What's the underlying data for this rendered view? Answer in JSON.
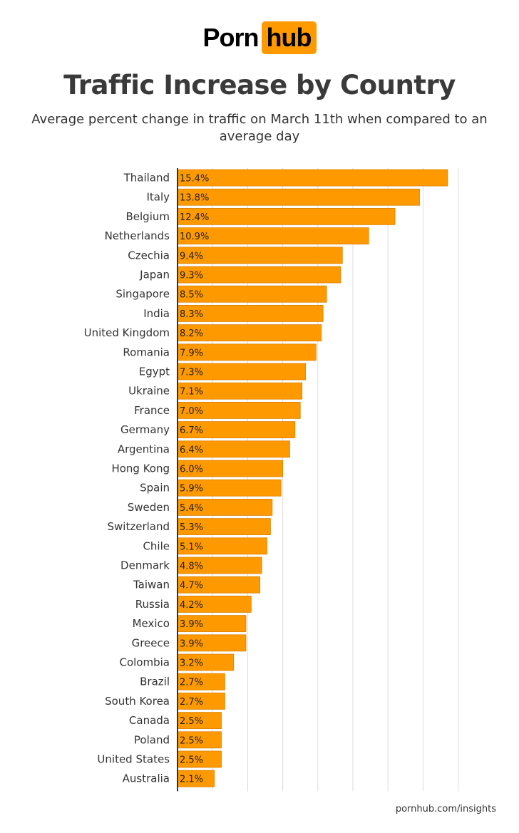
{
  "logo": {
    "part1": "Porn",
    "part2": "hub"
  },
  "title": "Traffic Increase by Country",
  "subtitle": "Average percent change in traffic on March 11th when compared to an average day",
  "footer": "pornhub.com/insights",
  "colors": {
    "bar": "#ff9900",
    "bar_border": "#d98200",
    "text": "#333333",
    "grid": "#dddddd",
    "axis": "#333333"
  },
  "chart_data": {
    "type": "bar",
    "orientation": "horizontal",
    "categories": [
      "Thailand",
      "Italy",
      "Belgium",
      "Netherlands",
      "Czechia",
      "Japan",
      "Singapore",
      "India",
      "United Kingdom",
      "Romania",
      "Egypt",
      "Ukraine",
      "France",
      "Germany",
      "Argentina",
      "Hong Kong",
      "Spain",
      "Sweden",
      "Switzerland",
      "Chile",
      "Denmark",
      "Taiwan",
      "Russia",
      "Mexico",
      "Greece",
      "Colombia",
      "Brazil",
      "South Korea",
      "Canada",
      "Poland",
      "United States",
      "Australia"
    ],
    "values": [
      15.4,
      13.8,
      12.4,
      10.9,
      9.4,
      9.3,
      8.5,
      8.3,
      8.2,
      7.9,
      7.3,
      7.1,
      7.0,
      6.7,
      6.4,
      6.0,
      5.9,
      5.4,
      5.3,
      5.1,
      4.8,
      4.7,
      4.2,
      3.9,
      3.9,
      3.2,
      2.7,
      2.7,
      2.5,
      2.5,
      2.5,
      2.1
    ],
    "labels": [
      "15.4%",
      "13.8%",
      "12.4%",
      "10.9%",
      "9.4%",
      "9.3%",
      "8.5%",
      "8.3%",
      "8.2%",
      "7.9%",
      "7.3%",
      "7.1%",
      "7.0%",
      "6.7%",
      "6.4%",
      "6.0%",
      "5.9%",
      "5.4%",
      "5.3%",
      "5.1%",
      "4.8%",
      "4.7%",
      "4.2%",
      "3.9%",
      "3.9%",
      "3.2%",
      "2.7%",
      "2.7%",
      "2.5%",
      "2.5%",
      "2.5%",
      "2.1%"
    ],
    "xlim": [
      0,
      16
    ],
    "gridlines": [
      2,
      4,
      6,
      8,
      10,
      12,
      14,
      16
    ],
    "grid": true
  }
}
